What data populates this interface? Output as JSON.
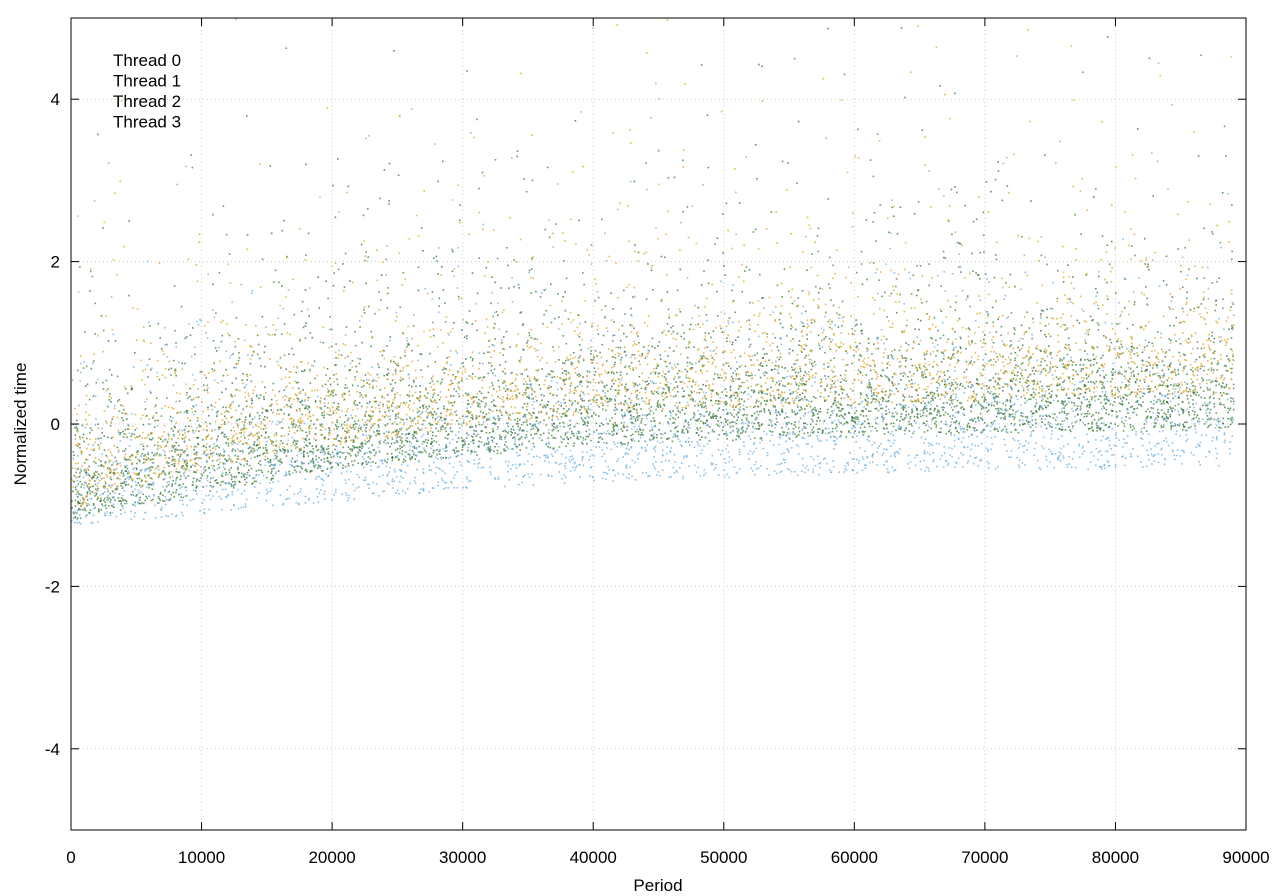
{
  "chart_data": {
    "type": "scatter",
    "title": "",
    "xlabel": "Period",
    "ylabel": "Normalized time",
    "xlim": [
      0,
      90000
    ],
    "ylim": [
      -5,
      5
    ],
    "x_ticks": [
      0,
      10000,
      20000,
      30000,
      40000,
      50000,
      60000,
      70000,
      80000,
      90000
    ],
    "y_ticks": [
      -4,
      -2,
      0,
      2,
      4
    ],
    "grid": true,
    "legend_position": "top-left",
    "x_data_range": [
      0,
      89000
    ],
    "series": [
      {
        "name": "Thread 0",
        "color": "#3a7d2c",
        "trend": [
          [
            0,
            -0.95
          ],
          [
            10000,
            -0.6
          ],
          [
            20000,
            -0.3
          ],
          [
            30000,
            -0.15
          ],
          [
            40000,
            0.0
          ],
          [
            50000,
            0.05
          ],
          [
            60000,
            0.1
          ],
          [
            70000,
            0.15
          ],
          [
            80000,
            0.15
          ],
          [
            89000,
            0.2
          ]
        ]
      },
      {
        "name": "Thread 1",
        "color": "#6aaee0",
        "trend": [
          [
            0,
            -1.0
          ],
          [
            10000,
            -0.85
          ],
          [
            20000,
            -0.7
          ],
          [
            30000,
            -0.55
          ],
          [
            40000,
            -0.45
          ],
          [
            50000,
            -0.4
          ],
          [
            60000,
            -0.35
          ],
          [
            70000,
            -0.3
          ],
          [
            80000,
            -0.3
          ],
          [
            89000,
            -0.25
          ]
        ]
      },
      {
        "name": "Thread 2",
        "color": "#2e6b3d",
        "trend": [
          [
            0,
            -0.9
          ],
          [
            10000,
            -0.55
          ],
          [
            20000,
            -0.3
          ],
          [
            30000,
            -0.1
          ],
          [
            40000,
            0.0
          ],
          [
            50000,
            0.1
          ],
          [
            60000,
            0.15
          ],
          [
            70000,
            0.15
          ],
          [
            80000,
            0.2
          ],
          [
            89000,
            0.2
          ]
        ]
      },
      {
        "name": "Thread 3",
        "color": "#d9a31e",
        "trend": [
          [
            0,
            -0.8
          ],
          [
            10000,
            -0.3
          ],
          [
            20000,
            0.0
          ],
          [
            30000,
            0.2
          ],
          [
            40000,
            0.4
          ],
          [
            50000,
            0.45
          ],
          [
            60000,
            0.5
          ],
          [
            70000,
            0.55
          ],
          [
            80000,
            0.6
          ],
          [
            89000,
            0.6
          ]
        ]
      }
    ]
  }
}
